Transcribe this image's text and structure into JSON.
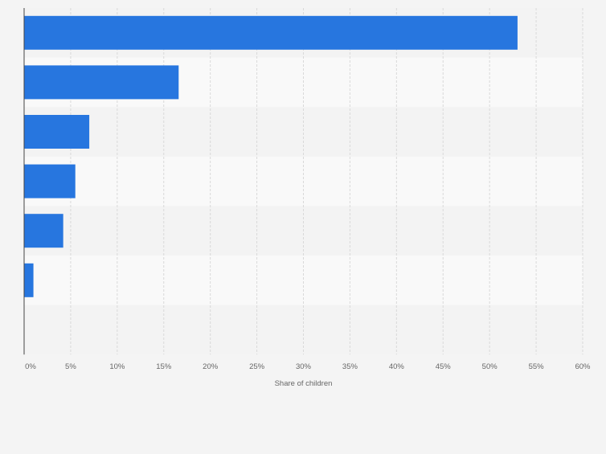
{
  "chart_data": {
    "type": "bar",
    "orientation": "horizontal",
    "title": "",
    "xlabel": "Share of children",
    "ylabel": "",
    "categories": [
      "",
      "",
      "",
      "",
      "",
      "",
      ""
    ],
    "values": [
      53,
      16.6,
      7,
      5.5,
      4.2,
      1,
      null
    ],
    "xlim": [
      0,
      60
    ],
    "x_tick_labels": [
      "0%",
      "5%",
      "10%",
      "15%",
      "20%",
      "25%",
      "30%",
      "35%",
      "40%",
      "45%",
      "50%",
      "55%",
      "60%"
    ],
    "grid": true,
    "legend": "none",
    "colors": {
      "bar": "#2776df",
      "band_light": "#f9f9f9",
      "band_dark": "#f3f3f3",
      "grid": "#d9d9d9",
      "axis": "#444444",
      "tick_text": "#666666",
      "background": "#f4f4f4"
    }
  }
}
